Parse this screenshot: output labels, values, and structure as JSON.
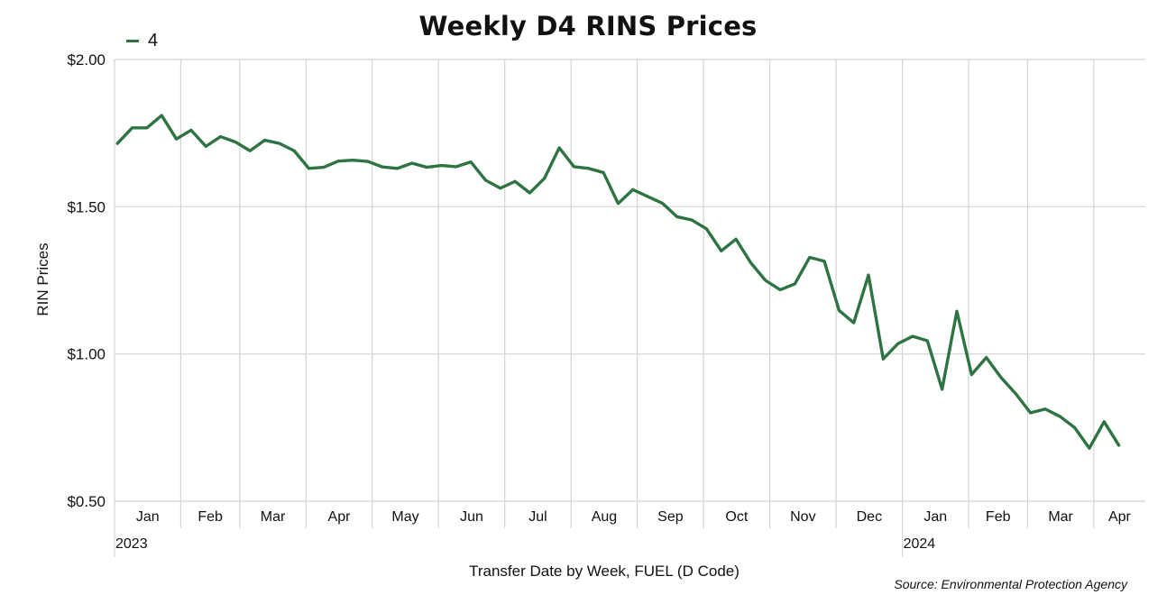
{
  "chart_data": {
    "type": "line",
    "title": "Weekly D4 RINS Prices",
    "xlabel": "Transfer Date by Week, FUEL (D Code)",
    "ylabel": "RIN Prices",
    "ylim": [
      0.5,
      2.0
    ],
    "yticks": [
      0.5,
      1.0,
      1.5,
      2.0
    ],
    "ytick_labels": [
      "$0.50",
      "$1.00",
      "$1.50",
      "$2.00"
    ],
    "grid": true,
    "legend_position": "top-left",
    "x_unit": "week index",
    "x_range": [
      0,
      70
    ],
    "month_boundaries": [
      0,
      4.5,
      8.5,
      13,
      17.5,
      22,
      26.5,
      31,
      35.5,
      40,
      44.5,
      49,
      53.5,
      58,
      62,
      66.5,
      70
    ],
    "month_labels": [
      "Jan",
      "Feb",
      "Mar",
      "Apr",
      "May",
      "Jun",
      "Jul",
      "Aug",
      "Sep",
      "Oct",
      "Nov",
      "Dec",
      "Jan",
      "Feb",
      "Mar",
      "Apr"
    ],
    "years": [
      {
        "label": "2023",
        "start": 0
      },
      {
        "label": "2024",
        "start": 53.5
      }
    ],
    "series": [
      {
        "name": "4",
        "color": "#2e7442",
        "values": [
          1.715,
          1.768,
          1.768,
          1.81,
          1.73,
          1.76,
          1.705,
          1.738,
          1.72,
          1.69,
          1.726,
          1.715,
          1.69,
          1.63,
          1.634,
          1.655,
          1.658,
          1.654,
          1.635,
          1.63,
          1.648,
          1.634,
          1.64,
          1.636,
          1.652,
          1.59,
          1.563,
          1.586,
          1.547,
          1.597,
          1.7,
          1.636,
          1.63,
          1.616,
          1.511,
          1.558,
          1.535,
          1.512,
          1.466,
          1.455,
          1.425,
          1.35,
          1.39,
          1.31,
          1.25,
          1.218,
          1.238,
          1.328,
          1.315,
          1.148,
          1.106,
          1.268,
          0.983,
          1.035,
          1.06,
          1.045,
          0.88,
          1.145,
          0.93,
          0.988,
          0.92,
          0.865,
          0.8,
          0.813,
          0.788,
          0.75,
          0.68,
          0.77,
          0.69
        ]
      }
    ],
    "source": "Source: Environmental Protection Agency"
  }
}
